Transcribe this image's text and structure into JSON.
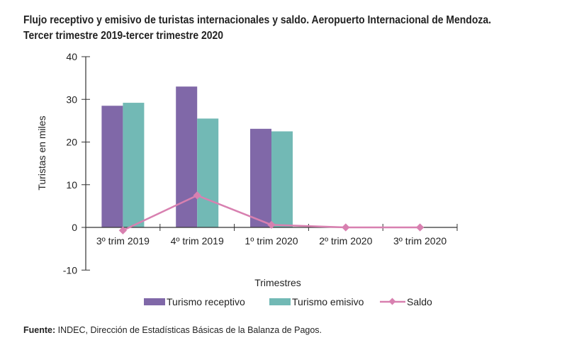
{
  "title_line1": "Flujo receptivo y emisivo de turistas internacionales y saldo. Aeropuerto Internacional de Mendoza.",
  "title_line2": "Tercer trimestre 2019-tercer trimestre 2020",
  "footer": {
    "label": "Fuente:",
    "text": " INDEC, Dirección de Estadísticas Básicas de la Balanza de Pagos."
  },
  "chart_data": {
    "type": "bar",
    "title": "Flujo receptivo y emisivo de turistas internacionales y saldo. Aeropuerto Internacional de Mendoza. Tercer trimestre 2019-tercer trimestre 2020",
    "xlabel": "Trimestres",
    "ylabel": "Turistas en miles",
    "ylim": [
      -10,
      40
    ],
    "yticks": [
      "40",
      "30",
      "20",
      "10",
      "0",
      "-10"
    ],
    "ytick_values": [
      40,
      30,
      20,
      10,
      0,
      -10
    ],
    "categories": [
      "3º trim 2019",
      "4º trim 2019",
      "1º trim 2020",
      "2º trim 2020",
      "3º trim 2020"
    ],
    "series": [
      {
        "name": "Turismo receptivo",
        "kind": "bar",
        "color": "#8068a8",
        "values": [
          28.5,
          33.0,
          23.1,
          0,
          0
        ]
      },
      {
        "name": "Turismo emisivo",
        "kind": "bar",
        "color": "#72b9b5",
        "values": [
          29.2,
          25.5,
          22.5,
          0,
          0
        ]
      },
      {
        "name": "Saldo",
        "kind": "line",
        "color": "#d880b0",
        "values": [
          -0.7,
          7.5,
          0.6,
          0,
          0
        ]
      }
    ],
    "legend": "bottom",
    "grid": false
  }
}
